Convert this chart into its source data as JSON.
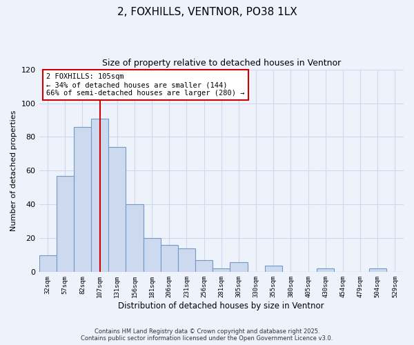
{
  "title": "2, FOXHILLS, VENTNOR, PO38 1LX",
  "subtitle": "Size of property relative to detached houses in Ventnor",
  "xlabel": "Distribution of detached houses by size in Ventnor",
  "ylabel": "Number of detached properties",
  "bin_labels": [
    "32sqm",
    "57sqm",
    "82sqm",
    "107sqm",
    "131sqm",
    "156sqm",
    "181sqm",
    "206sqm",
    "231sqm",
    "256sqm",
    "281sqm",
    "305sqm",
    "330sqm",
    "355sqm",
    "380sqm",
    "405sqm",
    "430sqm",
    "454sqm",
    "479sqm",
    "504sqm",
    "529sqm"
  ],
  "bar_values": [
    10,
    57,
    86,
    91,
    74,
    40,
    20,
    16,
    14,
    7,
    2,
    6,
    0,
    4,
    0,
    0,
    2,
    0,
    0,
    2,
    0
  ],
  "bar_color": "#cdd9ee",
  "bar_edge_color": "#7099c8",
  "ylim": [
    0,
    120
  ],
  "yticks": [
    0,
    20,
    40,
    60,
    80,
    100,
    120
  ],
  "property_bin_index": 3,
  "annotation_line1": "2 FOXHILLS: 105sqm",
  "annotation_line2": "← 34% of detached houses are smaller (144)",
  "annotation_line3": "66% of semi-detached houses are larger (280) →",
  "vline_color": "#cc0000",
  "annotation_box_color": "#ffffff",
  "annotation_box_edge": "#cc0000",
  "footer_line1": "Contains HM Land Registry data © Crown copyright and database right 2025.",
  "footer_line2": "Contains public sector information licensed under the Open Government Licence v3.0.",
  "background_color": "#eef2fb",
  "grid_color": "#d0d8ee"
}
